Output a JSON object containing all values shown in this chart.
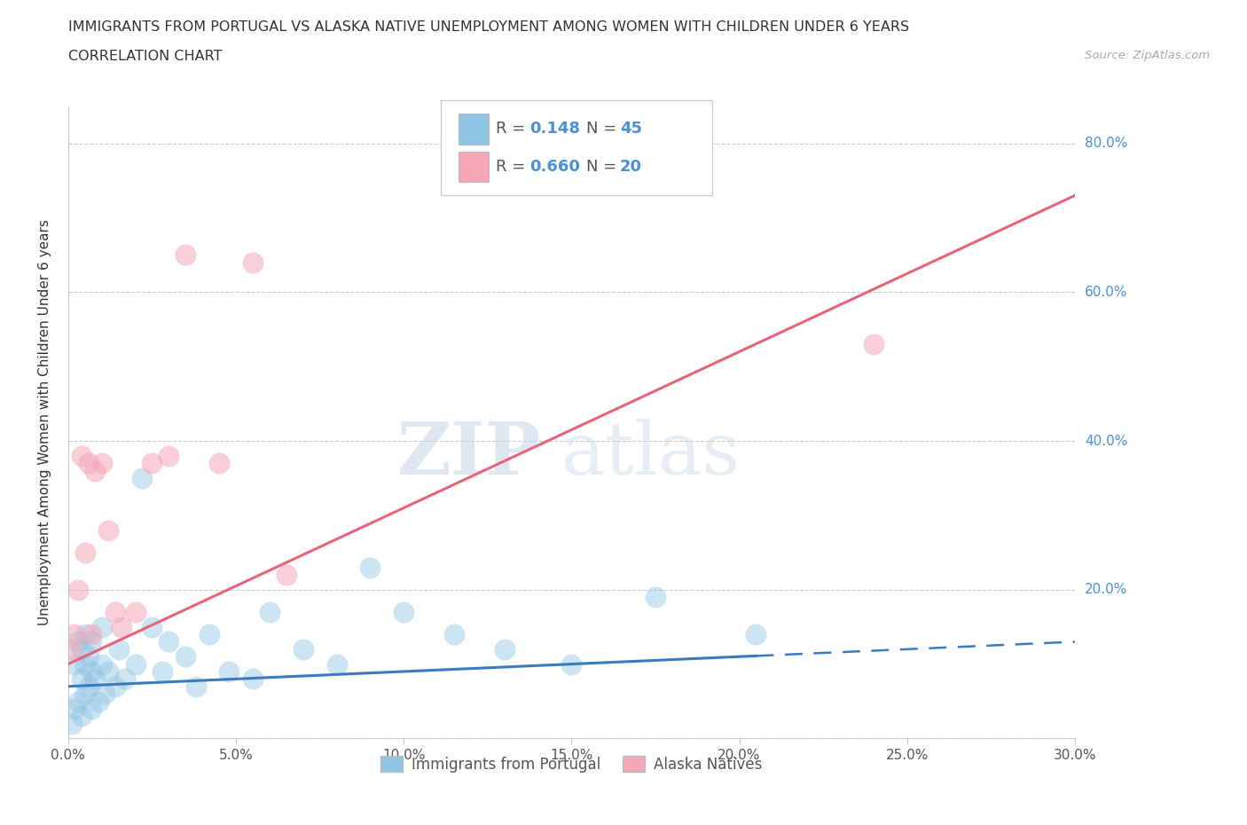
{
  "title": "IMMIGRANTS FROM PORTUGAL VS ALASKA NATIVE UNEMPLOYMENT AMONG WOMEN WITH CHILDREN UNDER 6 YEARS",
  "subtitle": "CORRELATION CHART",
  "source": "Source: ZipAtlas.com",
  "ylabel": "Unemployment Among Women with Children Under 6 years",
  "xlim": [
    0,
    0.3
  ],
  "ylim": [
    0,
    0.85
  ],
  "xticks": [
    0.0,
    0.05,
    0.1,
    0.15,
    0.2,
    0.25,
    0.3
  ],
  "xtick_labels": [
    "0.0%",
    "5.0%",
    "10.0%",
    "15.0%",
    "20.0%",
    "25.0%",
    "30.0%"
  ],
  "yticks": [
    0.0,
    0.2,
    0.4,
    0.6,
    0.8
  ],
  "ytick_labels": [
    "",
    "20.0%",
    "40.0%",
    "60.0%",
    "80.0%"
  ],
  "blue_color": "#90c4e4",
  "pink_color": "#f4a7b9",
  "blue_line_color": "#3a7bbf",
  "pink_line_color": "#e8637a",
  "R_blue": 0.148,
  "N_blue": 45,
  "R_pink": 0.66,
  "N_pink": 20,
  "watermark_zip": "ZIP",
  "watermark_atlas": "atlas",
  "blue_line_solid_end": 0.205,
  "portugal_x": [
    0.001,
    0.002,
    0.002,
    0.003,
    0.003,
    0.004,
    0.004,
    0.004,
    0.005,
    0.005,
    0.005,
    0.006,
    0.006,
    0.007,
    0.007,
    0.007,
    0.008,
    0.009,
    0.01,
    0.01,
    0.011,
    0.012,
    0.014,
    0.015,
    0.017,
    0.02,
    0.022,
    0.025,
    0.028,
    0.03,
    0.035,
    0.038,
    0.042,
    0.048,
    0.055,
    0.06,
    0.07,
    0.08,
    0.09,
    0.1,
    0.115,
    0.13,
    0.15,
    0.175,
    0.205
  ],
  "portugal_y": [
    0.02,
    0.04,
    0.1,
    0.05,
    0.13,
    0.03,
    0.08,
    0.12,
    0.06,
    0.1,
    0.14,
    0.07,
    0.11,
    0.04,
    0.09,
    0.13,
    0.08,
    0.05,
    0.1,
    0.15,
    0.06,
    0.09,
    0.07,
    0.12,
    0.08,
    0.1,
    0.35,
    0.15,
    0.09,
    0.13,
    0.11,
    0.07,
    0.14,
    0.09,
    0.08,
    0.17,
    0.12,
    0.1,
    0.23,
    0.17,
    0.14,
    0.12,
    0.1,
    0.19,
    0.14
  ],
  "alaska_x": [
    0.001,
    0.002,
    0.003,
    0.004,
    0.005,
    0.006,
    0.007,
    0.008,
    0.01,
    0.012,
    0.014,
    0.016,
    0.02,
    0.025,
    0.03,
    0.035,
    0.045,
    0.055,
    0.065,
    0.24
  ],
  "alaska_y": [
    0.12,
    0.14,
    0.2,
    0.38,
    0.25,
    0.37,
    0.14,
    0.36,
    0.37,
    0.28,
    0.17,
    0.15,
    0.17,
    0.37,
    0.38,
    0.65,
    0.37,
    0.64,
    0.22,
    0.53
  ]
}
